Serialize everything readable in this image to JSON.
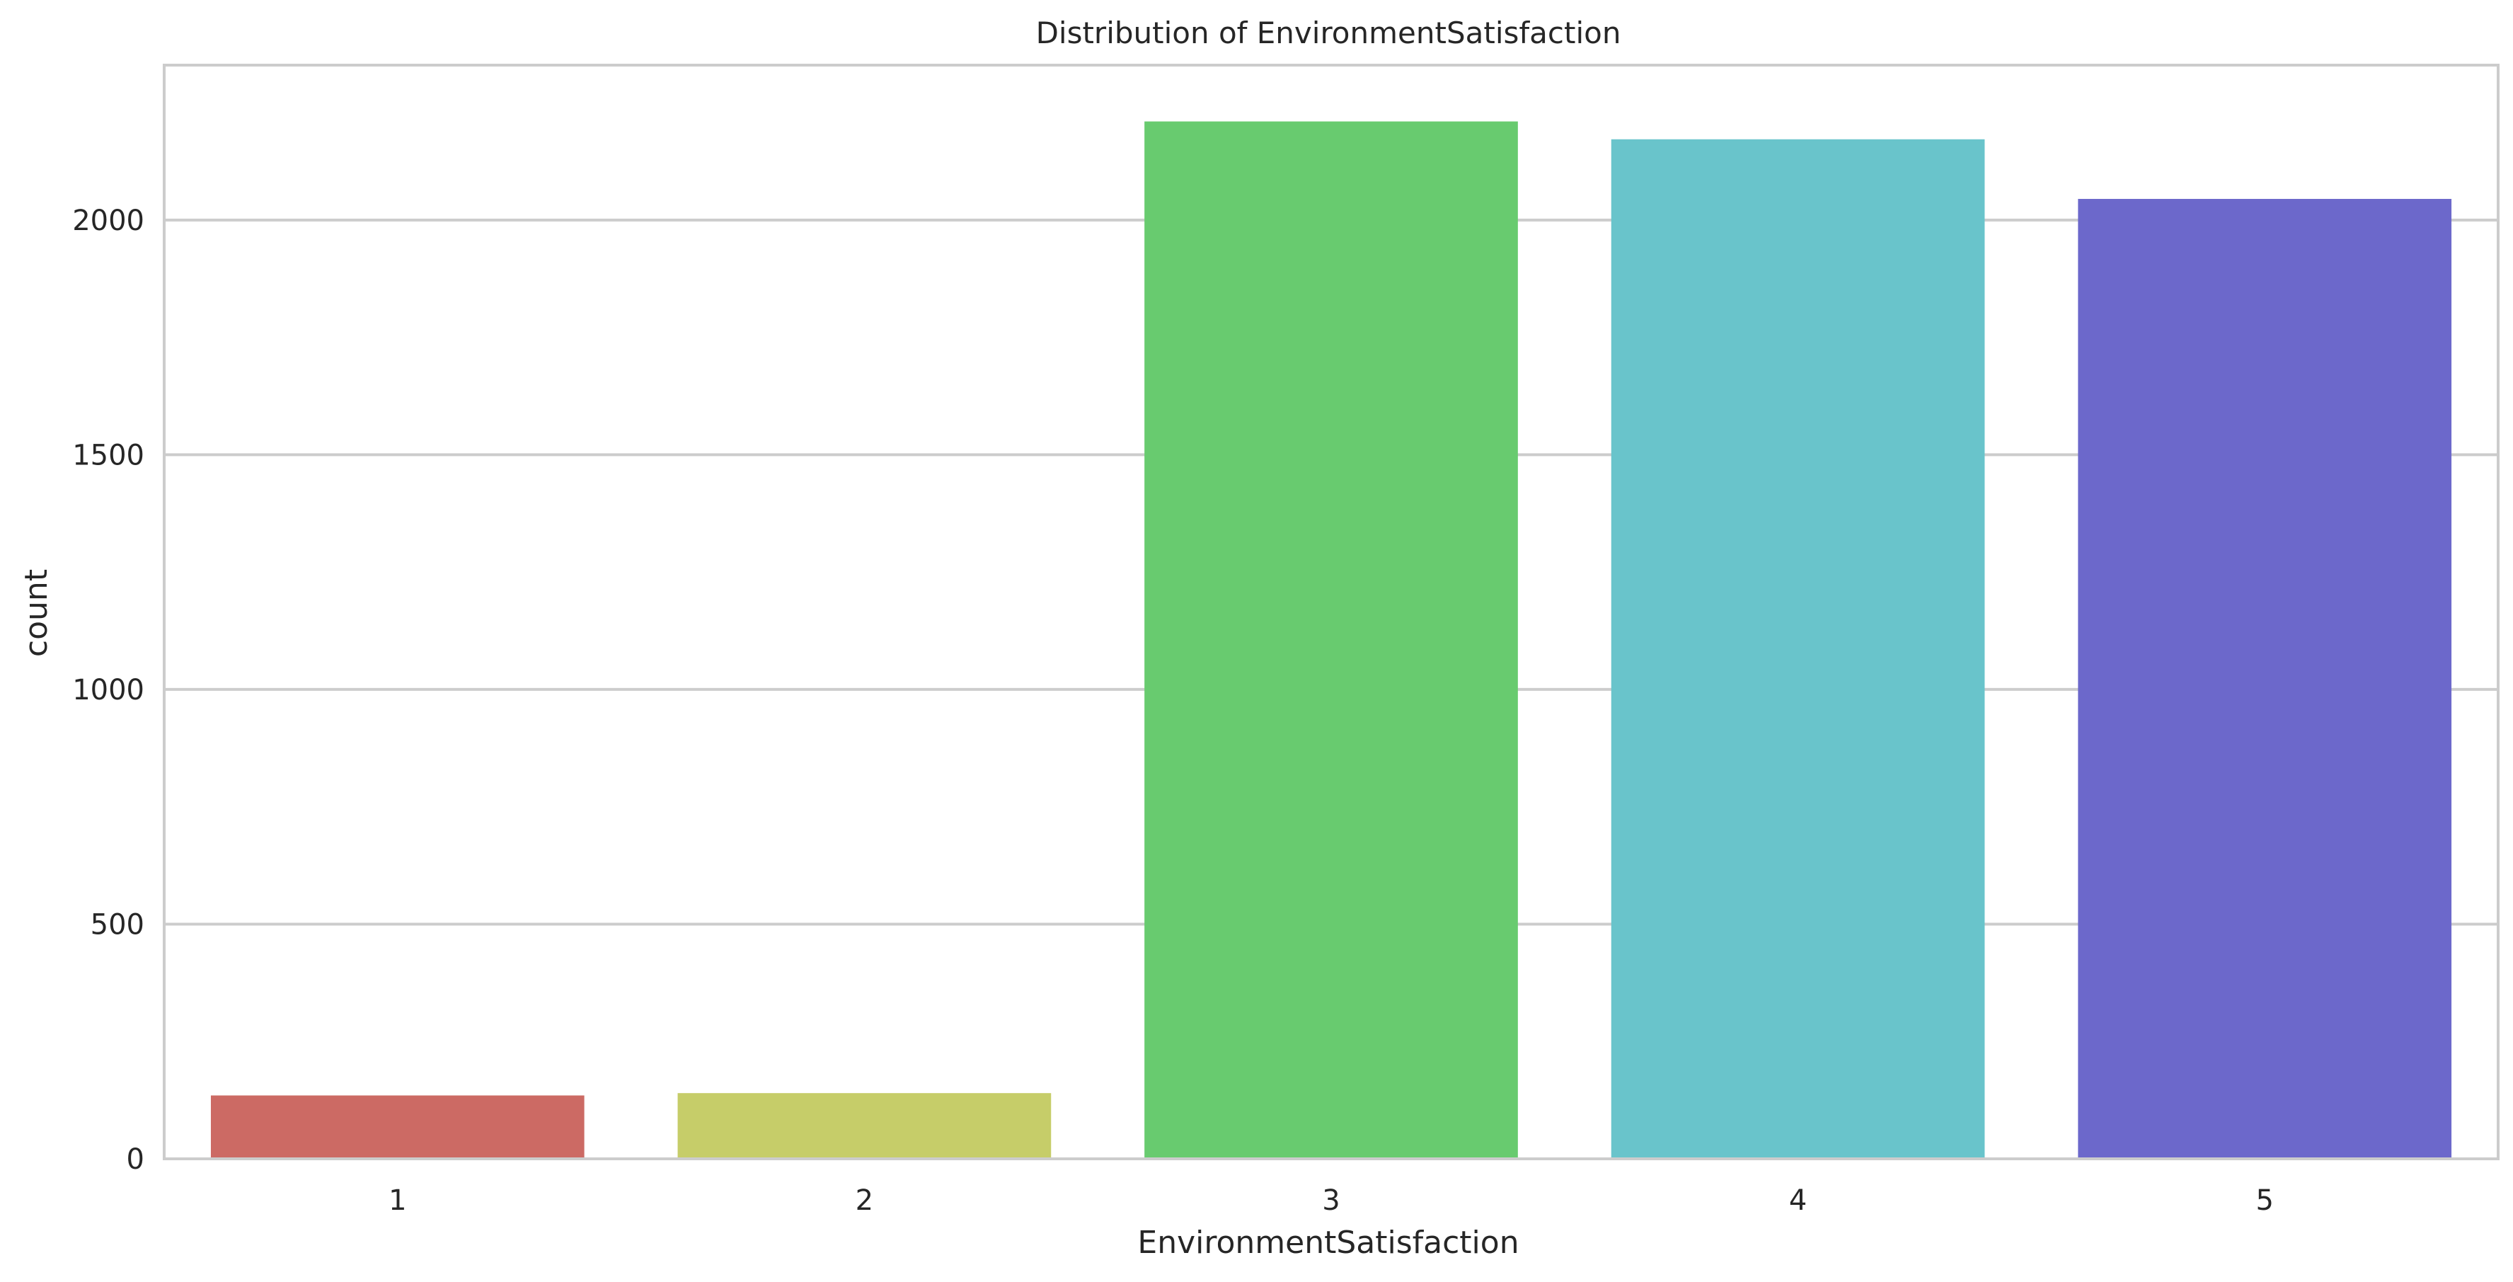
{
  "chart_data": {
    "type": "bar",
    "title": "Distribution of EnvironmentSatisfaction",
    "xlabel": "EnvironmentSatisfaction",
    "ylabel": "count",
    "categories": [
      "1",
      "2",
      "3",
      "4",
      "5"
    ],
    "values": [
      135,
      140,
      2210,
      2172,
      2045
    ],
    "colors": [
      "#cc6a64",
      "#c6cd69",
      "#68cb6f",
      "#69c4cb",
      "#6c68cb"
    ],
    "ylim": [
      0,
      2330
    ],
    "yticks": [
      0,
      500,
      1000,
      1500,
      2000
    ],
    "ytick_labels": [
      "0",
      "500",
      "1000",
      "1500",
      "2000"
    ],
    "grid": "y",
    "gridColor": "#cccccc",
    "frameColor": "#cccccc"
  }
}
